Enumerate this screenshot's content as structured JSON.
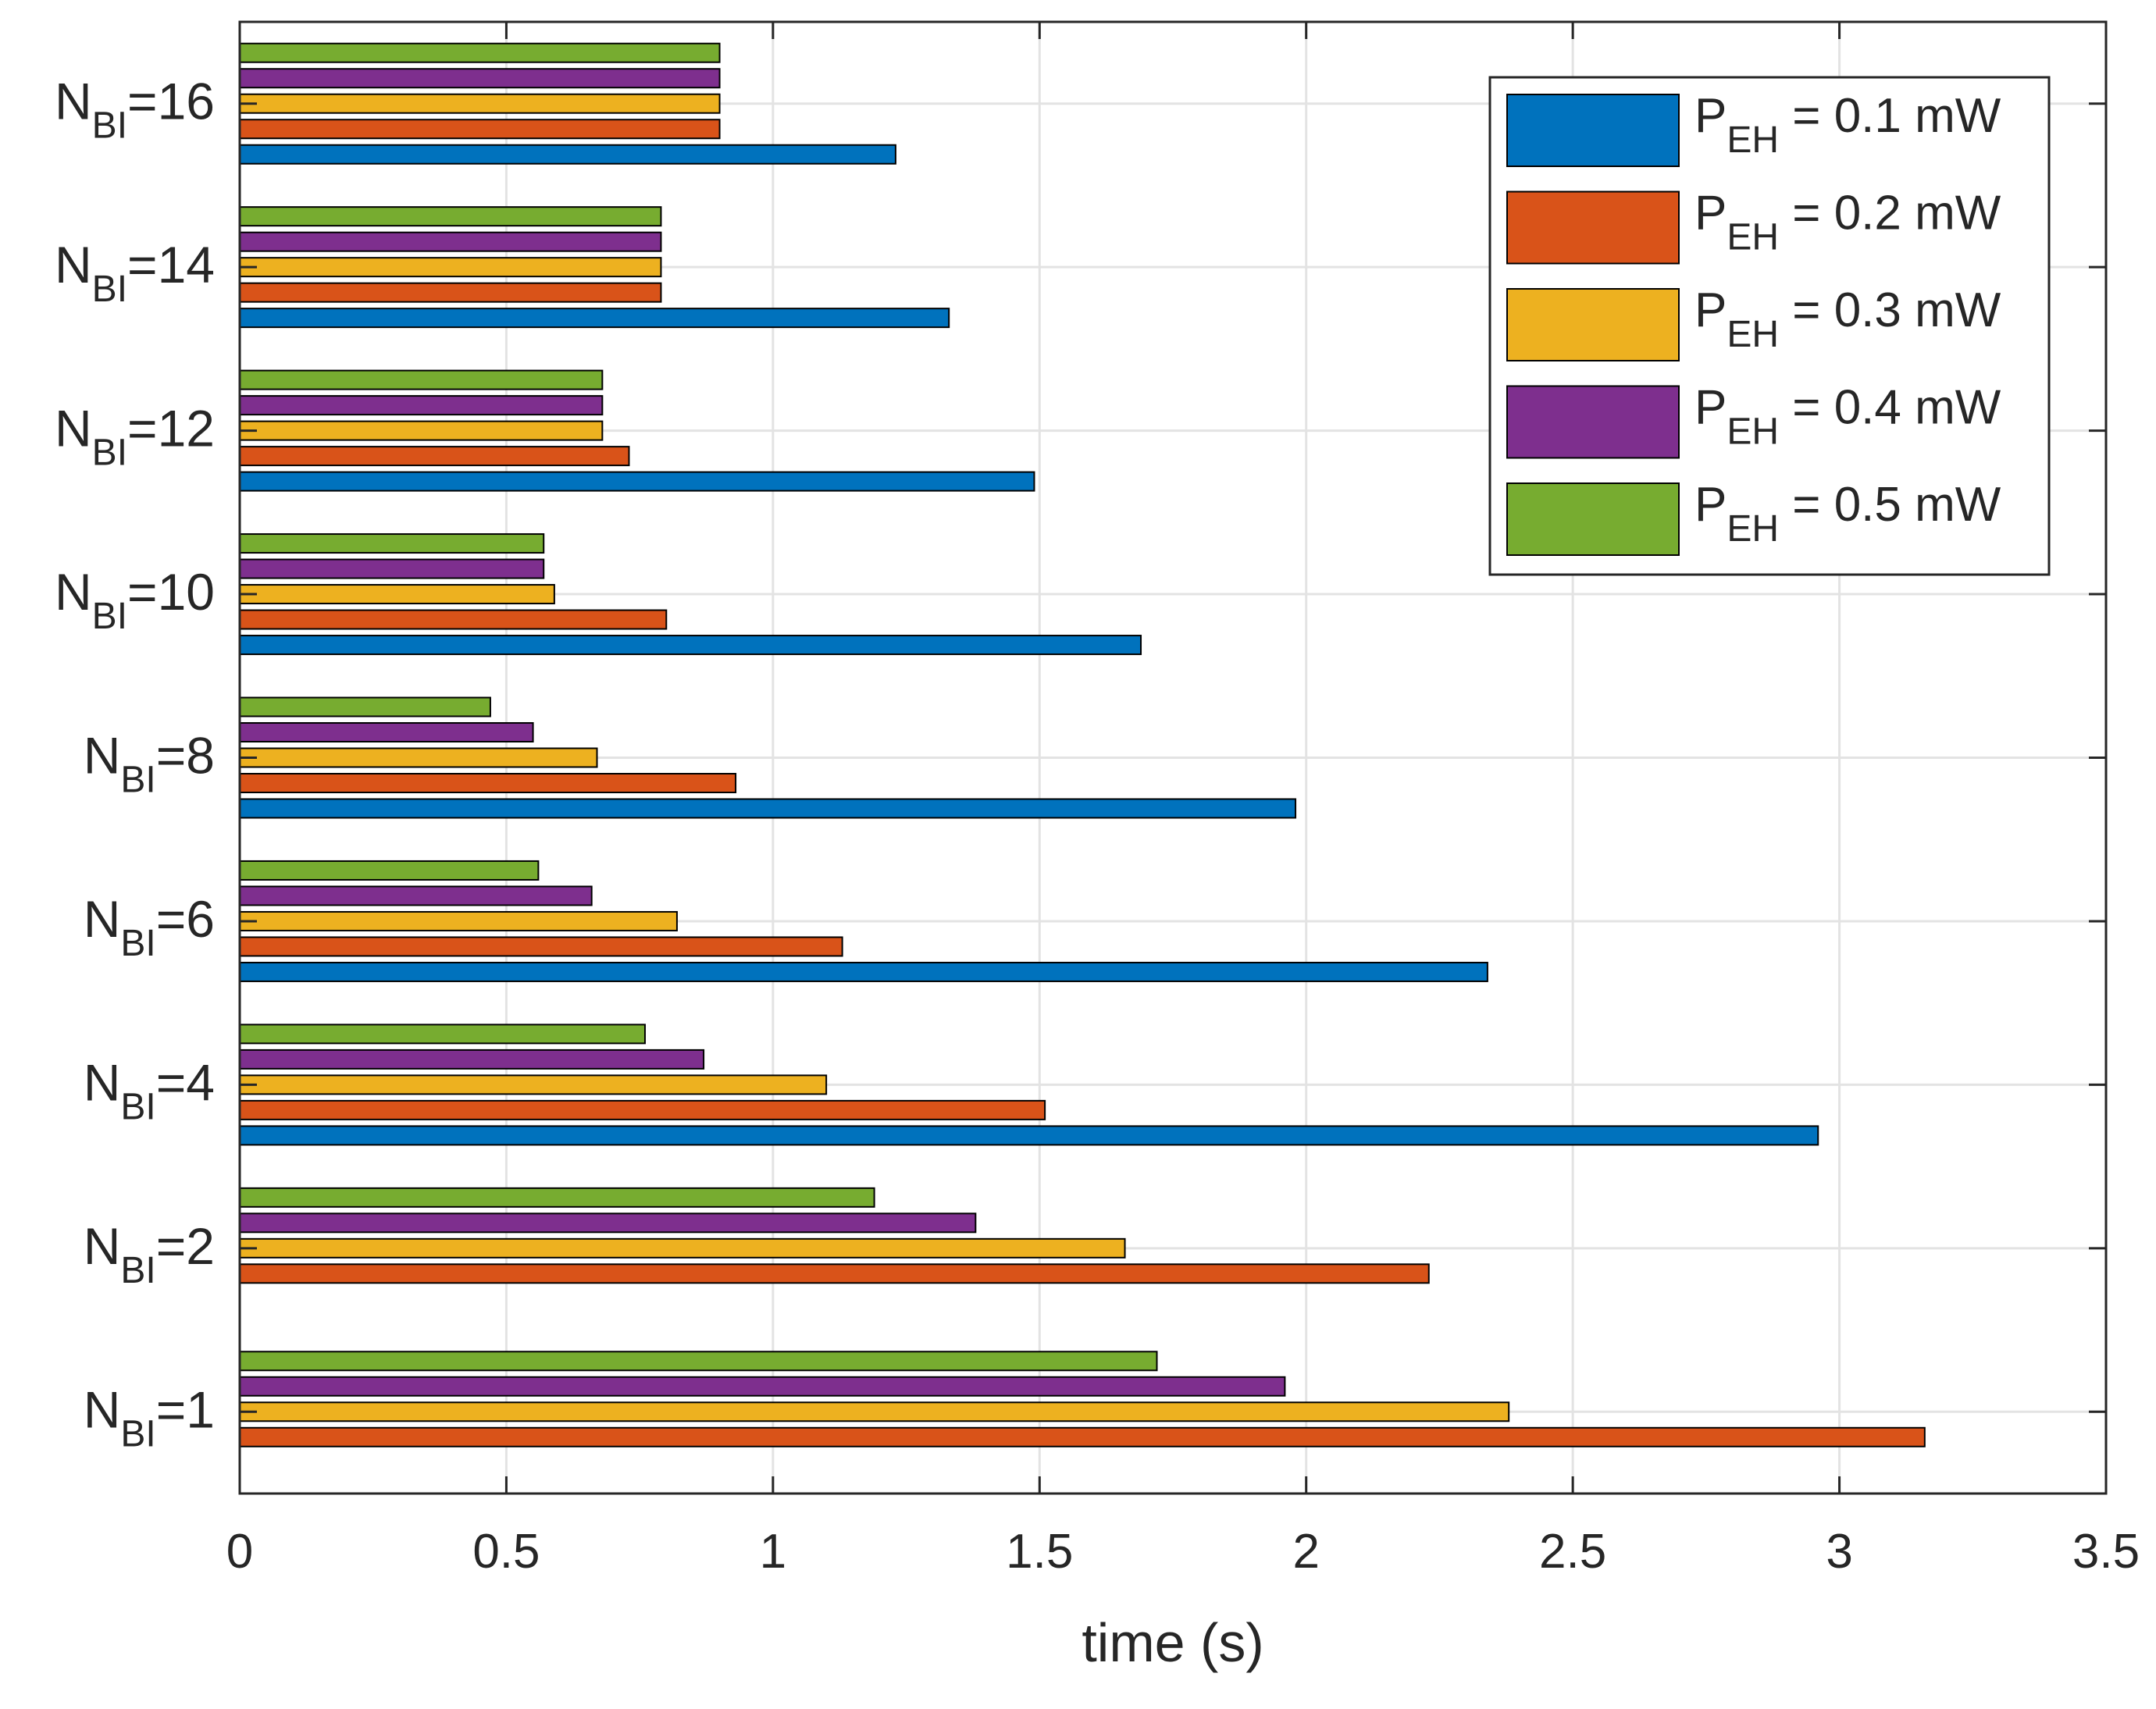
{
  "chart_data": {
    "type": "bar",
    "orientation": "horizontal",
    "title": "",
    "xlabel": "time (s)",
    "ylabel": "",
    "xlim": [
      0,
      3.5
    ],
    "xticks": [
      0,
      0.5,
      1,
      1.5,
      2,
      2.5,
      3,
      3.5
    ],
    "xtick_labels": [
      "0",
      "0.5",
      "1",
      "1.5",
      "2",
      "2.5",
      "3",
      "3.5"
    ],
    "grid": true,
    "legend_position": "top-right",
    "categories": [
      {
        "main": "N",
        "sub": "BI",
        "suffix": "=1"
      },
      {
        "main": "N",
        "sub": "BI",
        "suffix": "=2"
      },
      {
        "main": "N",
        "sub": "BI",
        "suffix": "=4"
      },
      {
        "main": "N",
        "sub": "BI",
        "suffix": "=6"
      },
      {
        "main": "N",
        "sub": "BI",
        "suffix": "=8"
      },
      {
        "main": "N",
        "sub": "BI",
        "suffix": "=10"
      },
      {
        "main": "N",
        "sub": "BI",
        "suffix": "=12"
      },
      {
        "main": "N",
        "sub": "BI",
        "suffix": "=14"
      },
      {
        "main": "N",
        "sub": "BI",
        "suffix": "=16"
      }
    ],
    "series": [
      {
        "main": "P",
        "sub": "EH",
        "suffix": " = 0.1 mW",
        "color": "#0072BD",
        "values": [
          null,
          null,
          2.96,
          2.34,
          1.98,
          1.69,
          1.49,
          1.33,
          1.23
        ]
      },
      {
        "main": "P",
        "sub": "EH",
        "suffix": " = 0.2 mW",
        "color": "#D95319",
        "values": [
          3.16,
          2.23,
          1.51,
          1.13,
          0.93,
          0.8,
          0.73,
          0.79,
          0.9
        ]
      },
      {
        "main": "P",
        "sub": "EH",
        "suffix": " = 0.3 mW",
        "color": "#EDB120",
        "values": [
          2.38,
          1.66,
          1.1,
          0.82,
          0.67,
          0.59,
          0.68,
          0.79,
          0.9
        ]
      },
      {
        "main": "P",
        "sub": "EH",
        "suffix": " = 0.4 mW",
        "color": "#7E2F8E",
        "values": [
          1.96,
          1.38,
          0.87,
          0.66,
          0.55,
          0.57,
          0.68,
          0.79,
          0.9
        ]
      },
      {
        "main": "P",
        "sub": "EH",
        "suffix": " = 0.5 mW",
        "color": "#77AC30",
        "values": [
          1.72,
          1.19,
          0.76,
          0.56,
          0.47,
          0.57,
          0.68,
          0.79,
          0.9
        ]
      }
    ]
  }
}
